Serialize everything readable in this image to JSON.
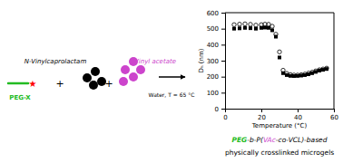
{
  "chart_data": {
    "type": "scatter",
    "xlabel": "Temperature (°C)",
    "ylabel": "Dₕ (nm)",
    "xlim": [
      0,
      60
    ],
    "ylim": [
      0,
      600
    ],
    "xticks": [
      0,
      20,
      40,
      60
    ],
    "yticks": [
      0,
      100,
      200,
      300,
      400,
      500,
      600
    ],
    "x": [
      5,
      8,
      11,
      14,
      17,
      20,
      22,
      24,
      26,
      28,
      30,
      32,
      34,
      36,
      38,
      40,
      42,
      44,
      46,
      48,
      50,
      52,
      54,
      56
    ],
    "series": [
      {
        "color": "black",
        "marker": "square",
        "values": [
          500,
          502,
          505,
          503,
          500,
          505,
          507,
          505,
          490,
          450,
          320,
          222,
          210,
          205,
          204,
          205,
          207,
          210,
          215,
          222,
          230,
          238,
          243,
          248
        ]
      },
      {
        "color": "black",
        "marker": "circle-open",
        "values": [
          525,
          528,
          530,
          527,
          522,
          525,
          528,
          527,
          515,
          465,
          355,
          240,
          220,
          213,
          210,
          210,
          212,
          216,
          222,
          228,
          236,
          243,
          248,
          253
        ]
      }
    ],
    "annotations": [
      {
        "text": "N-Vinylcaprolactam",
        "color": "black"
      },
      {
        "text": "Vinyl acetate",
        "color": "#cc44cc"
      },
      {
        "text": "★",
        "color": "red"
      },
      {
        "text": "PEG-X",
        "color": "#22bb22"
      },
      {
        "text": "+",
        "color": "black"
      },
      {
        "text": "+",
        "color": "black"
      },
      {
        "text": "Water, T = 65 °C",
        "color": "black"
      },
      {
        "parts": [
          {
            "text": "PEG",
            "color": "#22bb22"
          },
          {
            "text": "-",
            "color": "black"
          },
          {
            "text": "b",
            "color": "black"
          },
          {
            "text": "-P(",
            "color": "black"
          },
          {
            "text": "VAc",
            "color": "#cc44cc"
          },
          {
            "text": "-",
            "color": "black"
          },
          {
            "text": "co",
            "color": "black"
          },
          {
            "text": "-VCL)-based",
            "color": "black"
          }
        ]
      },
      {
        "text": "physically crosslinked microgels",
        "color": "black"
      }
    ]
  }
}
